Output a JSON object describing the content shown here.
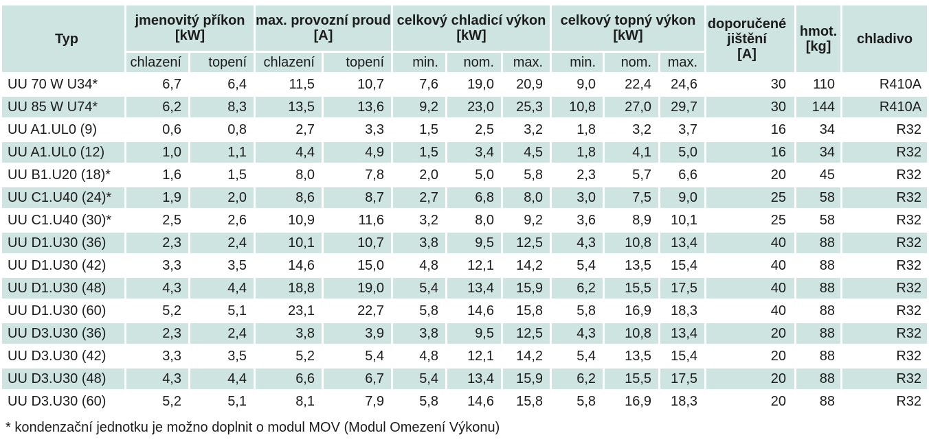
{
  "colors": {
    "cell_teal": "#cee4e1",
    "text": "#1c1c1c",
    "background": "#ffffff"
  },
  "table": {
    "header": {
      "typ": "Typ",
      "groups": [
        {
          "label": "jmenovitý příkon",
          "unit": "[kW]",
          "sub": [
            "chlazení",
            "topení"
          ]
        },
        {
          "label": "max. provozní proud",
          "unit": "[A]",
          "sub": [
            "chlazení",
            "topení"
          ]
        },
        {
          "label": "celkový chladicí výkon",
          "unit": "[kW]",
          "sub": [
            "min.",
            "nom.",
            "max."
          ]
        },
        {
          "label": "celkový topný výkon",
          "unit": "[kW]",
          "sub": [
            "min.",
            "nom.",
            "max."
          ]
        }
      ],
      "jisteni_label": "doporučené jištění",
      "jisteni_unit": "[A]",
      "hmot_label": "hmot.",
      "hmot_unit": "[kg]",
      "chladivo_label": "chladivo"
    },
    "rows": [
      {
        "typ": "UU 70 W U34*",
        "values": [
          "6,7",
          "6,4",
          "11,5",
          "10,7",
          "7,6",
          "19,0",
          "20,9",
          "9,0",
          "22,4",
          "24,6",
          "30",
          "110",
          "R410A"
        ]
      },
      {
        "typ": "UU 85 W U74*",
        "values": [
          "6,2",
          "8,3",
          "13,5",
          "13,6",
          "9,2",
          "23,0",
          "25,3",
          "10,8",
          "27,0",
          "29,7",
          "30",
          "144",
          "R410A"
        ]
      },
      {
        "typ": "UU A1.UL0 (9)",
        "values": [
          "0,6",
          "0,8",
          "2,7",
          "3,3",
          "1,5",
          "2,5",
          "3,2",
          "1,8",
          "3,2",
          "3,7",
          "16",
          "34",
          "R32"
        ]
      },
      {
        "typ": "UU A1.UL0 (12)",
        "values": [
          "1,0",
          "1,1",
          "4,4",
          "4,9",
          "1,5",
          "3,4",
          "4,5",
          "1,8",
          "4,1",
          "5,0",
          "16",
          "34",
          "R32"
        ]
      },
      {
        "typ": "UU B1.U20 (18)*",
        "values": [
          "1,6",
          "1,5",
          "8,0",
          "7,8",
          "2,0",
          "5,0",
          "5,8",
          "2,3",
          "5,7",
          "6,6",
          "20",
          "45",
          "R32"
        ]
      },
      {
        "typ": "UU C1.U40 (24)*",
        "values": [
          "1,9",
          "2,0",
          "8,6",
          "8,7",
          "2,7",
          "6,8",
          "8,0",
          "3,0",
          "7,5",
          "9,0",
          "25",
          "58",
          "R32"
        ]
      },
      {
        "typ": "UU C1.U40 (30)*",
        "values": [
          "2,5",
          "2,6",
          "10,9",
          "11,6",
          "3,2",
          "8,0",
          "9,2",
          "3,6",
          "8,9",
          "10,1",
          "25",
          "58",
          "R32"
        ]
      },
      {
        "typ": "UU D1.U30 (36)",
        "values": [
          "2,3",
          "2,4",
          "10,1",
          "10,7",
          "3,8",
          "9,5",
          "12,5",
          "4,3",
          "10,8",
          "13,4",
          "40",
          "88",
          "R32"
        ]
      },
      {
        "typ": "UU D1.U30 (42)",
        "values": [
          "3,3",
          "3,5",
          "14,6",
          "15,0",
          "4,8",
          "12,1",
          "14,2",
          "5,4",
          "13,5",
          "15,4",
          "40",
          "88",
          "R32"
        ]
      },
      {
        "typ": "UU D1.U30 (48)",
        "values": [
          "4,3",
          "4,4",
          "18,8",
          "19,0",
          "5,4",
          "13,4",
          "15,9",
          "6,2",
          "15,5",
          "17,5",
          "40",
          "88",
          "R32"
        ]
      },
      {
        "typ": "UU D1.U30 (60)",
        "values": [
          "5,2",
          "5,1",
          "23,1",
          "22,7",
          "5,8",
          "14,6",
          "15,8",
          "5,8",
          "16,9",
          "18,3",
          "40",
          "88",
          "R32"
        ]
      },
      {
        "typ": "UU D3.U30 (36)",
        "values": [
          "2,3",
          "2,4",
          "3,8",
          "3,9",
          "3,8",
          "9,5",
          "12,5",
          "4,3",
          "10,8",
          "13,4",
          "20",
          "88",
          "R32"
        ]
      },
      {
        "typ": "UU D3.U30 (42)",
        "values": [
          "3,3",
          "3,5",
          "5,2",
          "5,4",
          "4,8",
          "12,1",
          "14,2",
          "5,4",
          "13,5",
          "15,4",
          "20",
          "88",
          "R32"
        ]
      },
      {
        "typ": "UU D3.U30 (48)",
        "values": [
          "4,3",
          "4,4",
          "6,6",
          "6,7",
          "5,4",
          "13,4",
          "15,9",
          "6,2",
          "15,5",
          "17,5",
          "20",
          "88",
          "R32"
        ]
      },
      {
        "typ": "UU D3.U30 (60)",
        "values": [
          "5,2",
          "5,1",
          "8,1",
          "7,9",
          "5,8",
          "14,6",
          "15,8",
          "5,8",
          "16,9",
          "18,3",
          "20",
          "88",
          "R32"
        ]
      }
    ],
    "footnote": "* kondenzační jednotku je možno doplnit o modul MOV (Modul Omezení Výkonu)"
  }
}
